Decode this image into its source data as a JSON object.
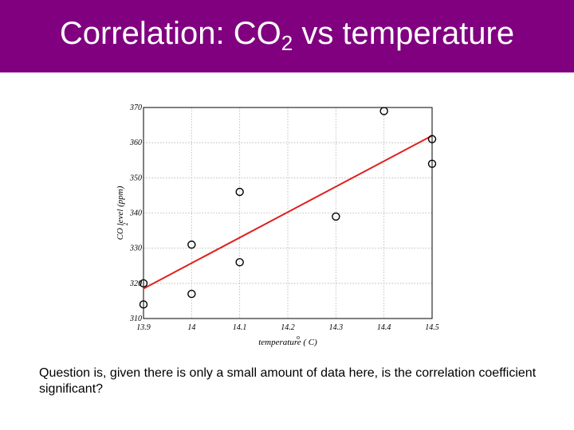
{
  "slide": {
    "title_main": "Correlation: CO",
    "title_sub": "2",
    "title_rest": " vs temperature",
    "caption": "Question is, given there is only a small amount of data here, is the correlation coefficient significant?",
    "accent_color": "#800080"
  },
  "chart_data": {
    "type": "scatter",
    "title": "",
    "xlabel": "temperature ( C)",
    "xlabel_superscript": "o",
    "ylabel": "CO  level (ppm)",
    "ylabel_subscript": "2",
    "xlim": [
      13.9,
      14.5
    ],
    "ylim": [
      310,
      370
    ],
    "x_ticks": [
      13.9,
      14,
      14.1,
      14.2,
      14.3,
      14.4,
      14.5
    ],
    "x_tick_labels": [
      "13.9",
      "14",
      "14.1",
      "14.2",
      "14.3",
      "14.4",
      "14.5"
    ],
    "y_ticks": [
      310,
      320,
      330,
      340,
      350,
      360,
      370
    ],
    "y_tick_labels": [
      "310",
      "320",
      "330",
      "340",
      "350",
      "360",
      "370"
    ],
    "grid": true,
    "points": [
      {
        "x": 13.9,
        "y": 320
      },
      {
        "x": 13.9,
        "y": 314
      },
      {
        "x": 14.0,
        "y": 331
      },
      {
        "x": 14.0,
        "y": 317
      },
      {
        "x": 14.1,
        "y": 346
      },
      {
        "x": 14.1,
        "y": 326
      },
      {
        "x": 14.3,
        "y": 339
      },
      {
        "x": 14.4,
        "y": 369
      },
      {
        "x": 14.5,
        "y": 361
      },
      {
        "x": 14.5,
        "y": 354
      }
    ],
    "fit_line": {
      "x": [
        13.9,
        14.5
      ],
      "y": [
        318.5,
        362
      ],
      "color": "#e02020"
    },
    "marker_color": "#000000"
  }
}
